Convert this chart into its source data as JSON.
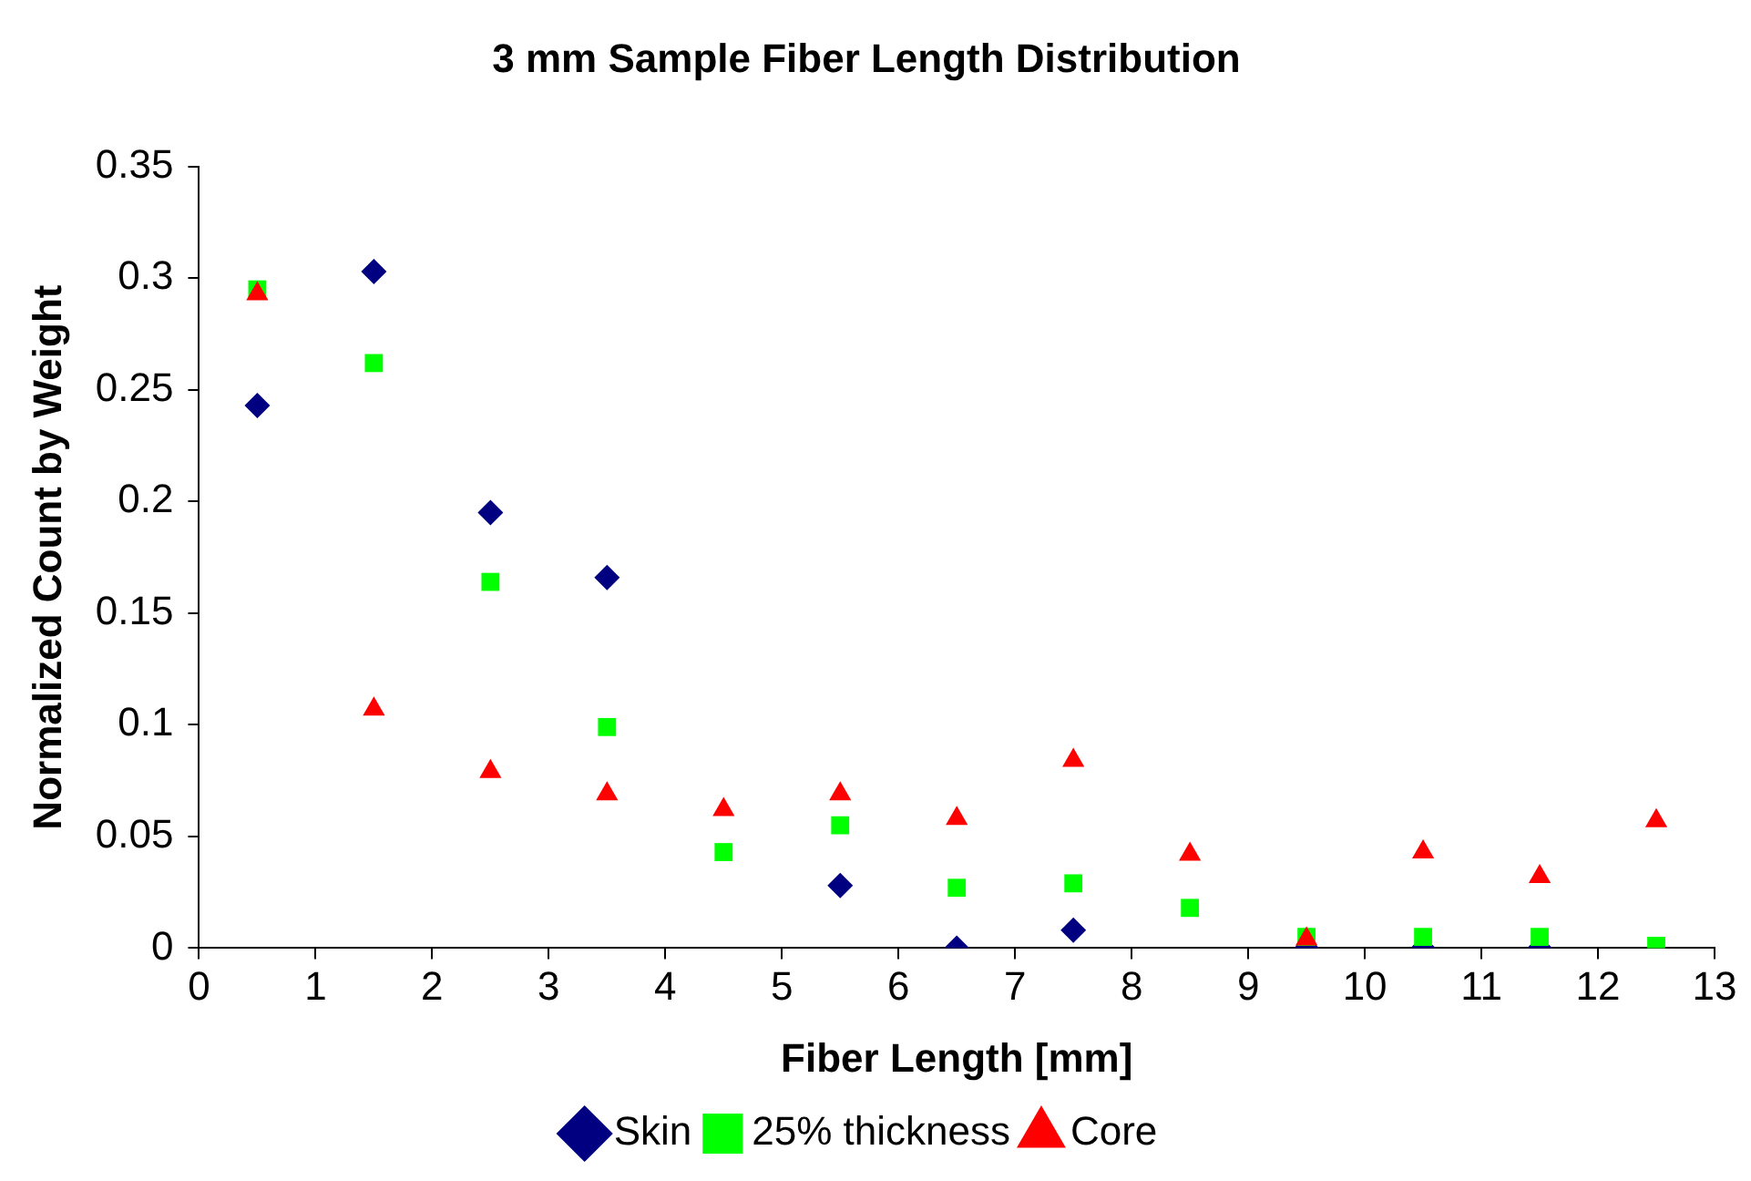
{
  "chart_data": {
    "type": "scatter",
    "title": "3 mm Sample Fiber Length Distribution",
    "xlabel": "Fiber Length [mm]",
    "ylabel": "Normalized Count by Weight",
    "x": [
      0.5,
      1.5,
      2.5,
      3.5,
      4.5,
      5.5,
      6.5,
      7.5,
      8.5,
      9.5,
      10.5,
      11.5,
      12.5
    ],
    "series": [
      {
        "name": "Skin",
        "color": "#000080",
        "marker": "diamond",
        "values": [
          0.243,
          0.303,
          0.195,
          0.166,
          null,
          0.028,
          0,
          0.008,
          null,
          0,
          0,
          0,
          null
        ]
      },
      {
        "name": "25% thickness",
        "color": "#00ff00",
        "marker": "square",
        "values": [
          0.295,
          0.262,
          0.164,
          0.099,
          0.043,
          0.055,
          0.027,
          0.029,
          0.018,
          0.005,
          0.005,
          0.005,
          0.001
        ]
      },
      {
        "name": "Core",
        "color": "#ff0000",
        "marker": "triangle",
        "values": [
          0.293,
          0.107,
          0.079,
          0.069,
          0.062,
          0.069,
          0.058,
          0.084,
          0.042,
          0.004,
          0.043,
          0.032,
          0.057
        ]
      }
    ],
    "xlim": [
      0,
      13
    ],
    "xticks": [
      0,
      1,
      2,
      3,
      4,
      5,
      6,
      7,
      8,
      9,
      10,
      11,
      12,
      13
    ],
    "ylim": [
      0,
      0.35
    ],
    "yticks": [
      0,
      0.05,
      0.1,
      0.15,
      0.2,
      0.25,
      0.3,
      0.35
    ],
    "grid": false,
    "legend": "bottom"
  }
}
